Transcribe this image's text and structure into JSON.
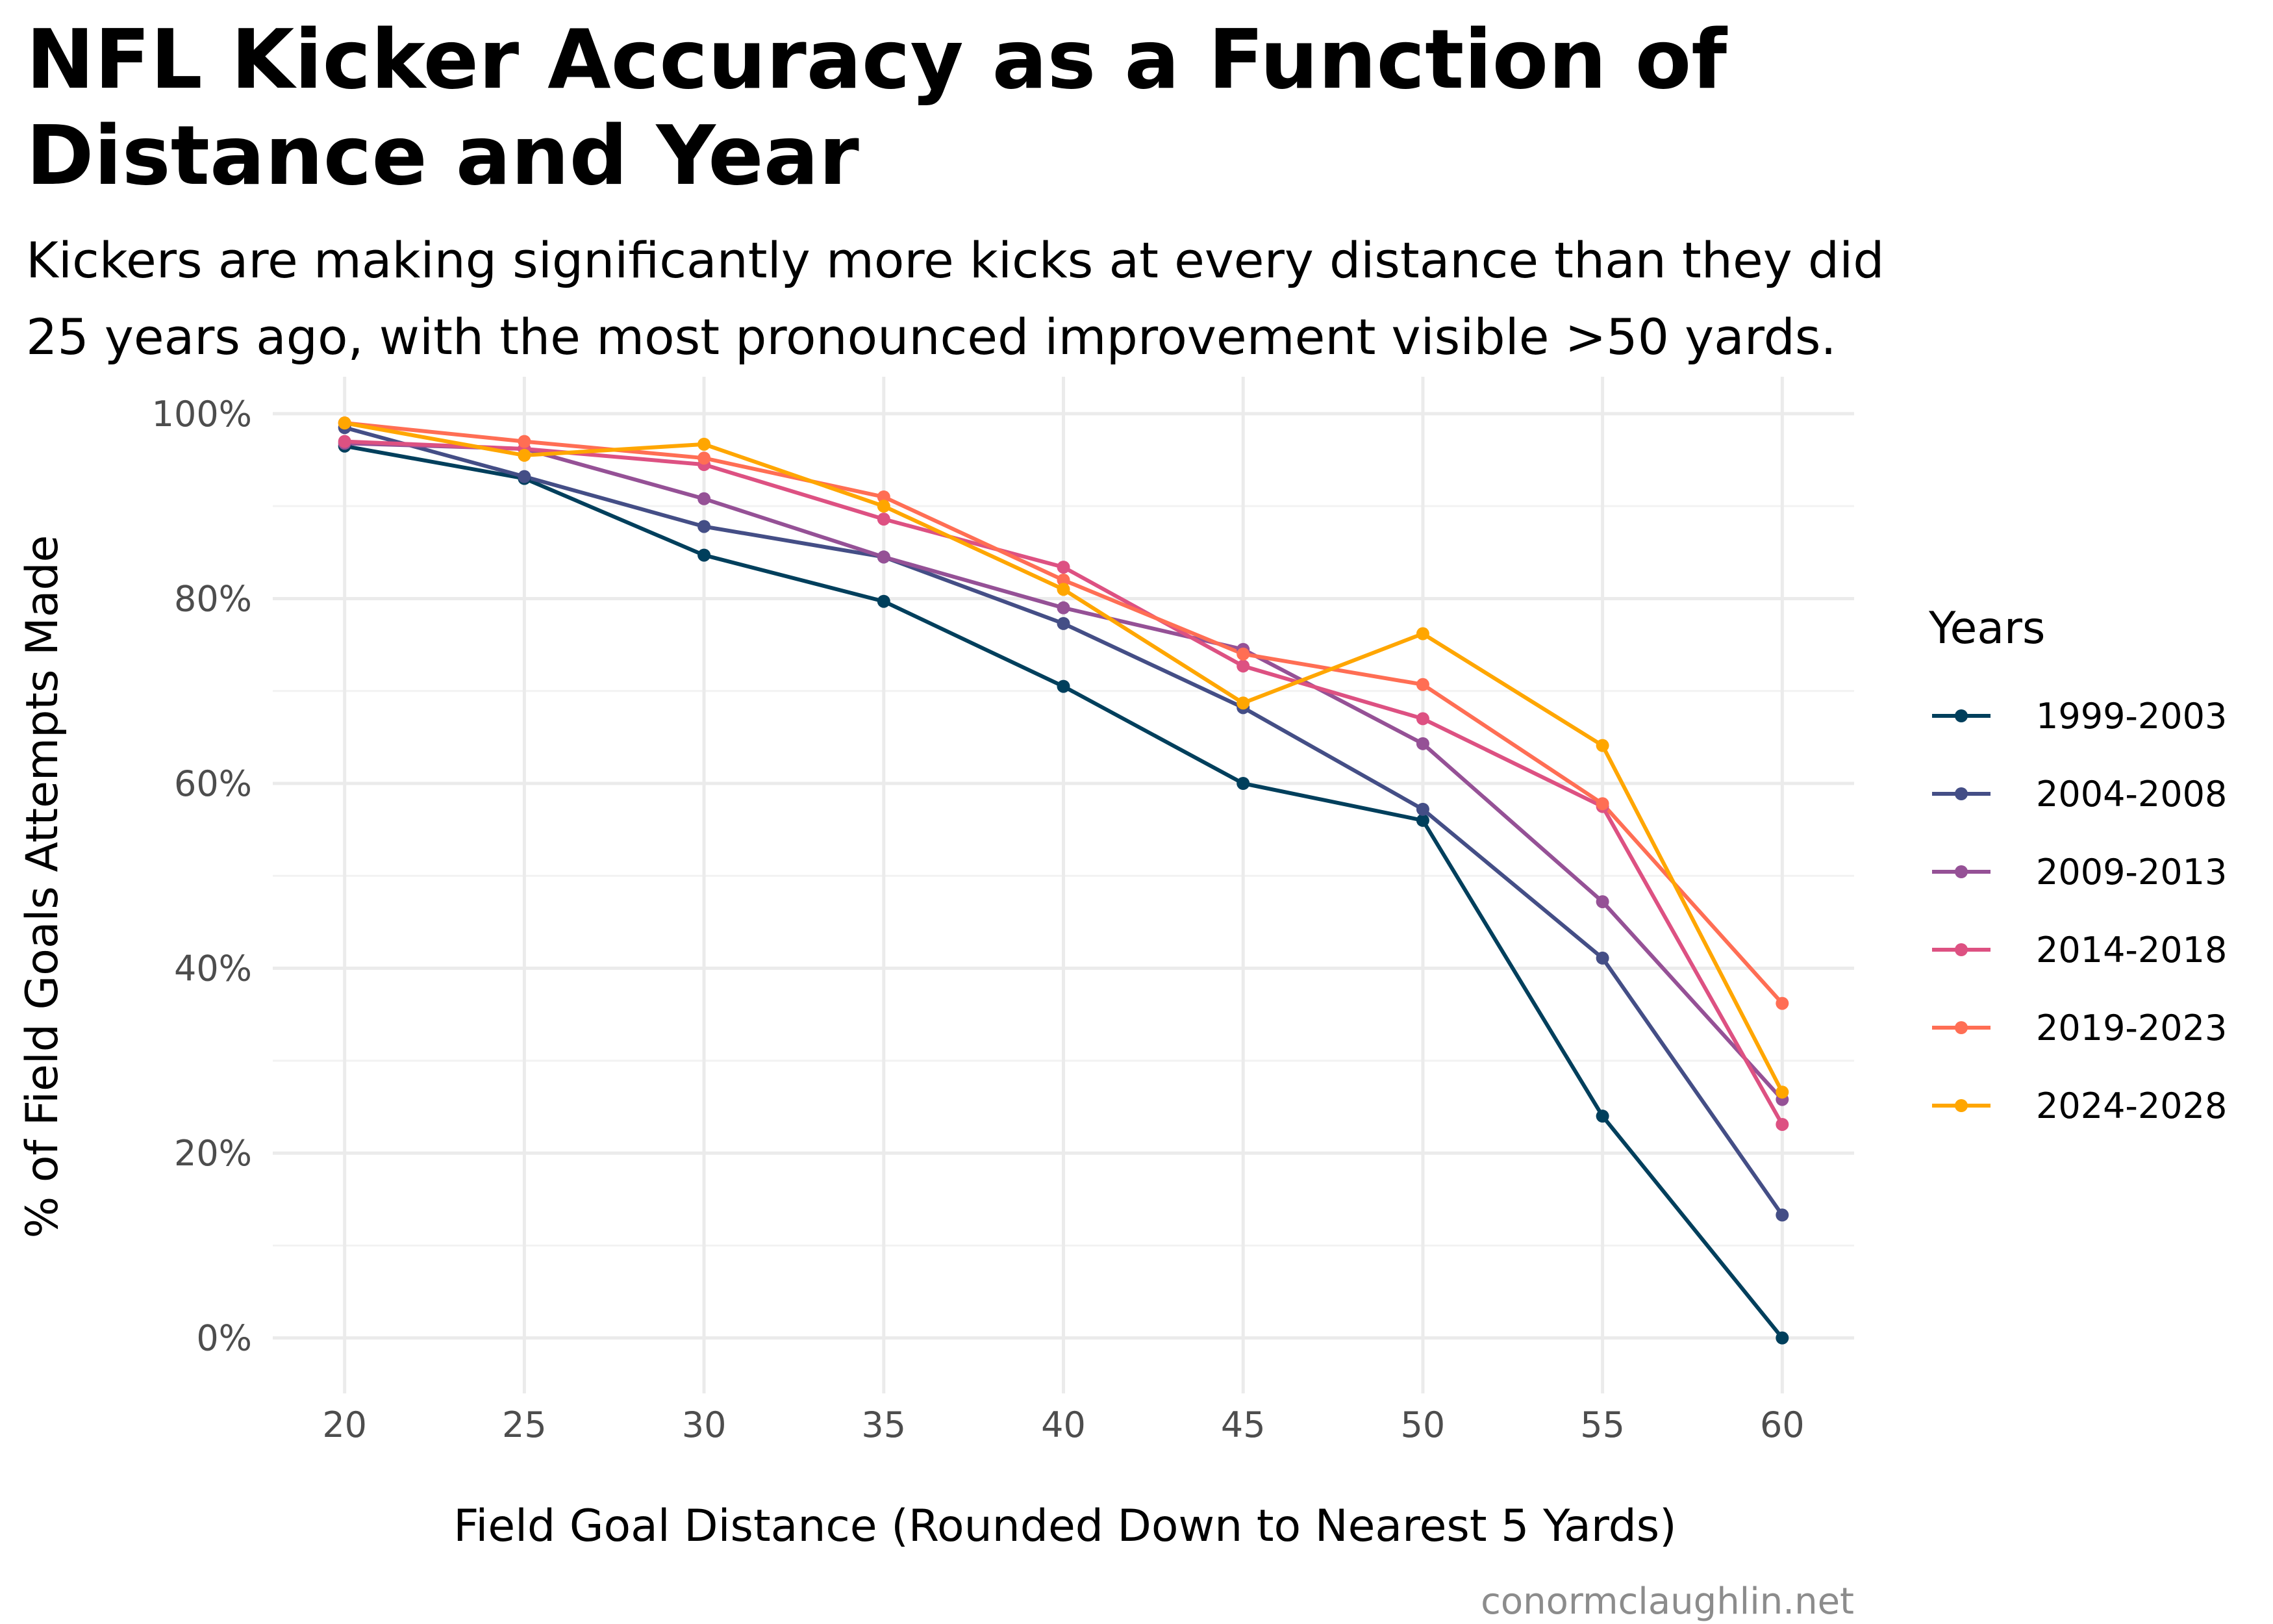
{
  "chart_data": {
    "type": "line",
    "title": "NFL Kicker Accuracy as a Function of Distance and Year",
    "title_lines": [
      "NFL Kicker Accuracy as a Function of",
      "Distance and Year"
    ],
    "subtitle": "Kickers are making significantly more kicks at every distance than they did 25 years ago, with the most pronounced improvement visible >50 yards.",
    "subtitle_lines": [
      "Kickers are making significantly more kicks at every distance than they did",
      "25 years ago, with the most pronounced improvement visible >50 yards."
    ],
    "xlabel": "Field Goal Distance (Rounded Down to Nearest 5 Yards)",
    "ylabel": "% of Field Goals Attempts Made",
    "caption": "conormclaughlin.net",
    "legend_title": "Years",
    "legend_position": "right",
    "grid": true,
    "x": [
      20,
      25,
      30,
      35,
      40,
      45,
      50,
      55,
      60
    ],
    "x_ticks": [
      "20",
      "25",
      "30",
      "35",
      "40",
      "45",
      "50",
      "55",
      "60"
    ],
    "xlim": [
      18,
      62
    ],
    "ylim": [
      -0.06,
      1.04
    ],
    "y_ticks": [
      0,
      0.2,
      0.4,
      0.6,
      0.8,
      1.0
    ],
    "y_tick_labels": [
      "0%",
      "20%",
      "40%",
      "60%",
      "80%",
      "100%"
    ],
    "series": [
      {
        "name": "1999-2003",
        "color": "#003f5c",
        "values": [
          0.965,
          0.93,
          0.847,
          0.797,
          0.705,
          0.6,
          0.56,
          0.24,
          0.0
        ]
      },
      {
        "name": "2004-2008",
        "color": "#444e86",
        "values": [
          0.985,
          0.932,
          0.878,
          0.845,
          0.773,
          0.682,
          0.572,
          0.411,
          0.133
        ]
      },
      {
        "name": "2009-2013",
        "color": "#955196",
        "values": [
          0.968,
          0.962,
          0.908,
          0.845,
          0.79,
          0.745,
          0.643,
          0.472,
          0.258
        ]
      },
      {
        "name": "2014-2018",
        "color": "#dd5182",
        "values": [
          0.97,
          0.962,
          0.945,
          0.886,
          0.834,
          0.727,
          0.67,
          0.575,
          0.231
        ]
      },
      {
        "name": "2019-2023",
        "color": "#ff6e54",
        "values": [
          0.99,
          0.97,
          0.952,
          0.91,
          0.82,
          0.74,
          0.707,
          0.578,
          0.362
        ]
      },
      {
        "name": "2024-2028",
        "color": "#ffa600",
        "values": [
          0.99,
          0.955,
          0.967,
          0.9,
          0.81,
          0.687,
          0.762,
          0.641,
          0.266
        ]
      }
    ]
  }
}
